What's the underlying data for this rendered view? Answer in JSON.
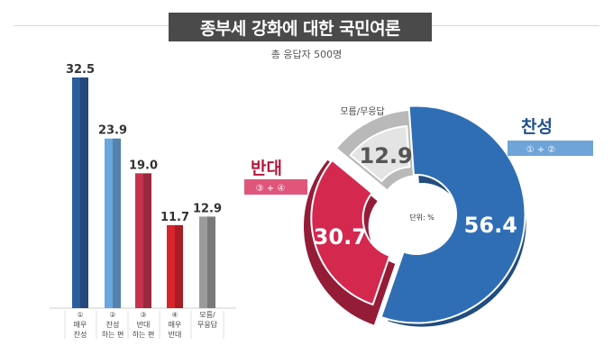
{
  "chart_data": [
    {
      "type": "bar",
      "title": "종부세 강화에 대한 국민여론",
      "subtitle": "총 응답자 500명",
      "categories": [
        [
          "①",
          "매우",
          "찬성"
        ],
        [
          "②",
          "찬성",
          "하는 편"
        ],
        [
          "③",
          "반대",
          "하는 편"
        ],
        [
          "④",
          "매우",
          "반대"
        ],
        [
          "모름/",
          "무응답"
        ]
      ],
      "values": [
        32.5,
        23.9,
        19.0,
        11.7,
        12.9
      ],
      "value_labels": [
        "32.5",
        "23.9",
        "19.0",
        "11.7",
        "12.9"
      ],
      "colors": [
        "#2b5e9c",
        "#6aa7dd",
        "#c5334f",
        "#d8242d",
        "#9b9b9b"
      ],
      "ylim": [
        0,
        35
      ]
    },
    {
      "type": "pie",
      "style": "exploded donut",
      "center_label": "단위: %",
      "slices": [
        {
          "value": 56.4,
          "label": "56.4",
          "color": "#2f6eb5",
          "side": "찬성",
          "note": "① + ②"
        },
        {
          "value": 30.7,
          "label": "30.7",
          "color": "#d4284f",
          "side": "반대",
          "note": "③ + ④"
        },
        {
          "value": 12.9,
          "label": "12.9",
          "color": "#e4e4e4",
          "side": "모름/무응답",
          "note": ""
        }
      ]
    }
  ]
}
